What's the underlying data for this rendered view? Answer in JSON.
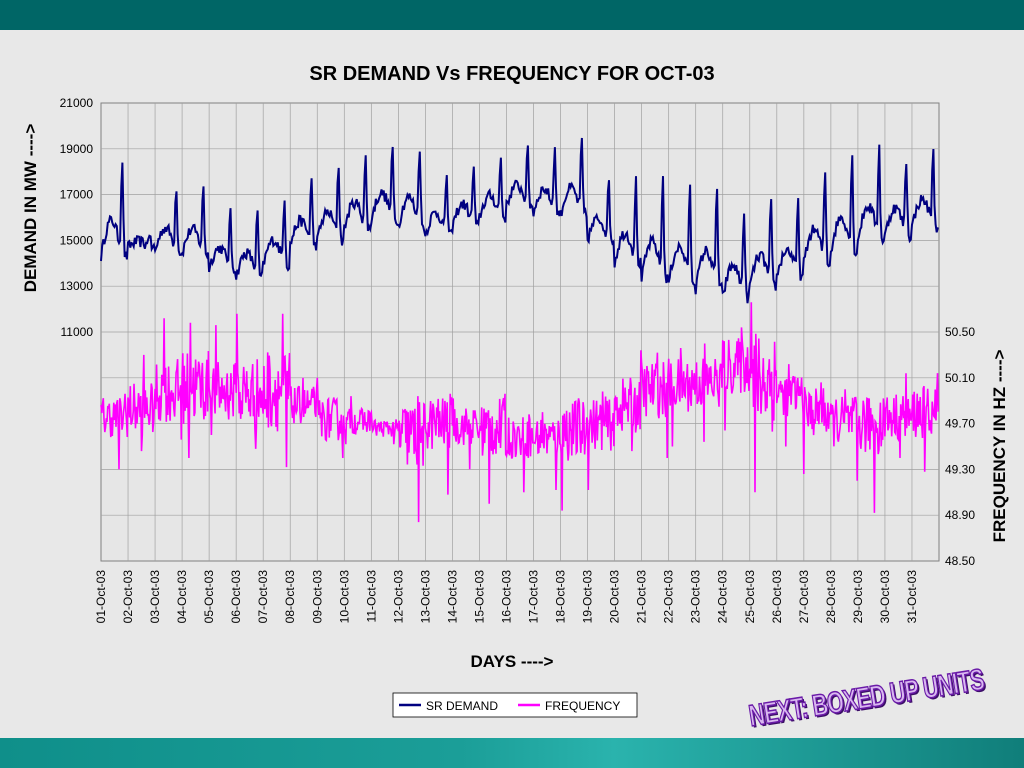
{
  "colors": {
    "top_band": "#006666",
    "plot_bg": "#e6e6e6",
    "grid": "#a0a0a0",
    "demand": "#000080",
    "frequency": "#ff00ff",
    "banner_fill": "#d9b8f0",
    "banner_stroke": "#6a1aa8"
  },
  "banner": {
    "text": "NEXT: BOXED UP UNITS"
  },
  "chart_data": {
    "type": "line",
    "title": "SR DEMAND Vs FREQUENCY FOR OCT-03",
    "xlabel": "DAYS ---->",
    "ylabel": "DEMAND IN MW ---->",
    "ylabel_right": "FREQUENCY IN HZ ---->",
    "x_categories": [
      "01-Oct-03",
      "02-Oct-03",
      "03-Oct-03",
      "04-Oct-03",
      "05-Oct-03",
      "06-Oct-03",
      "07-Oct-03",
      "08-Oct-03",
      "09-Oct-03",
      "10-Oct-03",
      "11-Oct-03",
      "12-Oct-03",
      "13-Oct-03",
      "14-Oct-03",
      "15-Oct-03",
      "16-Oct-03",
      "17-Oct-03",
      "18-Oct-03",
      "19-Oct-03",
      "20-Oct-03",
      "21-Oct-03",
      "22-Oct-03",
      "23-Oct-03",
      "24-Oct-03",
      "25-Oct-03",
      "26-Oct-03",
      "27-Oct-03",
      "28-Oct-03",
      "29-Oct-03",
      "30-Oct-03",
      "31-Oct-03"
    ],
    "ylim_left": [
      1000,
      21000
    ],
    "yticks_left": [
      "21000",
      "19000",
      "17000",
      "15000",
      "13000",
      "11000"
    ],
    "ylim_right": [
      48.5,
      52.5
    ],
    "yticks_right": [
      "50.50",
      "50.10",
      "49.70",
      "49.30",
      "48.90",
      "48.50"
    ],
    "grid": true,
    "legend_position": "bottom",
    "series": [
      {
        "name": "SR DEMAND",
        "axis": "left",
        "daily_base": [
          14300,
          14700,
          14500,
          14400,
          13800,
          13400,
          13900,
          14800,
          15000,
          15500,
          15900,
          15600,
          15200,
          15600,
          16000,
          16500,
          16200,
          16100,
          15000,
          14000,
          13300,
          13200,
          12900,
          12500,
          13000,
          13400,
          14000,
          14500,
          15000,
          15200,
          15600
        ],
        "daily_peak": [
          18800,
          15400,
          17500,
          17500,
          16300,
          16400,
          17100,
          17800,
          18500,
          18800,
          19200,
          19300,
          18100,
          18400,
          18700,
          19100,
          19200,
          19500,
          17700,
          17800,
          18000,
          17500,
          17600,
          16500,
          16800,
          16800,
          18200,
          18800,
          19300,
          18700,
          19000
        ]
      },
      {
        "name": "FREQUENCY",
        "axis": "right",
        "daily_mean": [
          49.76,
          49.83,
          49.98,
          50.02,
          49.98,
          49.96,
          50.0,
          49.86,
          49.74,
          49.72,
          49.66,
          49.6,
          49.7,
          49.68,
          49.66,
          49.58,
          49.58,
          49.64,
          49.7,
          49.86,
          50.0,
          50.04,
          50.06,
          50.2,
          50.08,
          49.96,
          49.8,
          49.72,
          49.7,
          49.76,
          49.8
        ],
        "daily_max": [
          49.96,
          50.3,
          50.62,
          50.58,
          50.56,
          50.66,
          50.66,
          50.1,
          50.1,
          49.94,
          49.8,
          49.94,
          49.96,
          49.92,
          49.96,
          49.78,
          49.8,
          49.92,
          49.98,
          50.34,
          50.32,
          50.36,
          50.4,
          50.54,
          50.76,
          50.22,
          50.06,
          50.0,
          49.92,
          50.14,
          50.14
        ],
        "daily_min": [
          49.3,
          49.46,
          49.56,
          49.4,
          49.6,
          49.48,
          49.32,
          49.5,
          49.4,
          49.52,
          49.52,
          48.84,
          49.08,
          49.3,
          49.0,
          49.1,
          49.12,
          48.94,
          49.12,
          49.46,
          49.4,
          49.5,
          49.54,
          49.64,
          49.1,
          49.5,
          49.26,
          49.2,
          48.92,
          49.4,
          49.28
        ]
      }
    ]
  }
}
